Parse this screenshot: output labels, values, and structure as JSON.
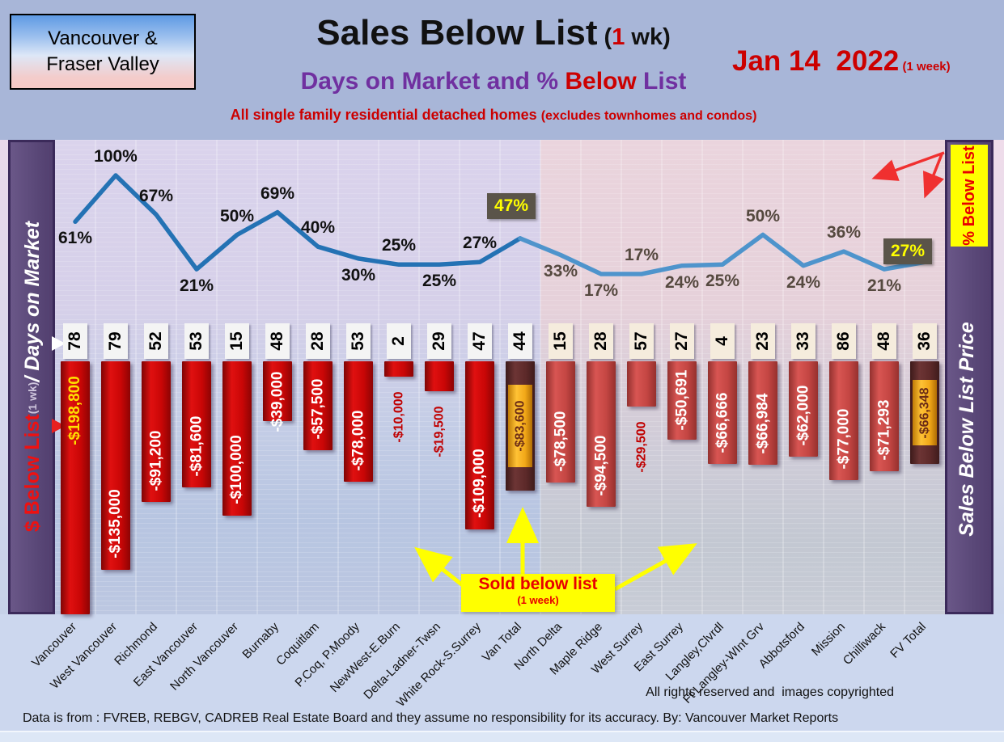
{
  "header": {
    "region_box": {
      "line1": "Vancouver &",
      "line2": "Fraser Valley"
    },
    "title": {
      "main": "Sales Below List",
      "paren_open": " (",
      "paren_num": "1",
      "paren_rest": " wk)"
    },
    "date": {
      "main": "Jan 14  2022",
      "note": " (1 week)"
    },
    "subtitle": {
      "part1": "Days on Market and % ",
      "part2": "Below ",
      "part3": "List"
    },
    "tagline": {
      "part1": "All single family residential detached homes ",
      "part2": "(excludes townhomes and condos)"
    }
  },
  "left_sidebar": {
    "label_red": "$ Below List ",
    "label_small": "(1 wk) ",
    "label_white": "/ Days on Market"
  },
  "right_sidebar": {
    "badge": "% Below List",
    "label": "Sales Below List Price"
  },
  "annotations": {
    "sold_line1": "Sold below list",
    "sold_line2": "(1 week)"
  },
  "footer": {
    "rights": "All rights reserved and  images copyrighted",
    "source": "Data is from : FVREB, REBGV, CADREB Real Estate Board and they assume no responsibility for its accuracy. By: Vancouver Market Reports"
  },
  "colors": {
    "accent_purple": "#7030a0",
    "accent_red": "#cc0000",
    "bar_red_left": "#c00000",
    "bar_red_right": "#c0504d",
    "total_bar_brown": "#5a2a2a",
    "total_gold": "#f2a81a",
    "line_left": "#2472b4",
    "line_right": "#4e94cc",
    "badge_bg": "#5a5449",
    "badge_text": "#ffff00",
    "sidebar_purple": "#5d4a7c",
    "callout_yellow": "#ffff00"
  },
  "chart_data": {
    "type": "bar",
    "title": "Sales Below List (1 wk) — Days on Market and % Below List",
    "categories": [
      "Vancouver",
      "West Vancouver",
      "Richmond",
      "East Vancouver",
      "North Vancouver",
      "Burnaby",
      "Coquitlam",
      "P.Coq, P.Moody",
      "NewWest-E.Burn",
      "Delta-Ladner-Twsn",
      "White Rock-S.Surrey",
      "Van Total",
      "North Delta",
      "Maple Ridge",
      "West Surrey",
      "East Surrey",
      "Langley,Clvrdl",
      "Ft Langley-WInt Grv",
      "Abbotsford",
      "Mission",
      "Chilliwack",
      "FV Total"
    ],
    "regions": {
      "vancouver_columns": 12,
      "fraser_valley_columns": 10
    },
    "totals_indices": [
      11,
      21
    ],
    "series": [
      {
        "name": "% Below List",
        "type": "line",
        "values": [
          61,
          100,
          67,
          21,
          50,
          69,
          40,
          30,
          25,
          25,
          27,
          47,
          33,
          17,
          17,
          24,
          25,
          50,
          24,
          36,
          21,
          27
        ],
        "label_side": [
          "below",
          "above",
          "above",
          "below",
          "above",
          "above",
          "above",
          "below",
          "above",
          "below",
          "above",
          "badge",
          "below",
          "below",
          "above",
          "below",
          "below",
          "above",
          "below",
          "above",
          "below",
          "badge"
        ]
      },
      {
        "name": "$ Below List",
        "type": "bar",
        "values": [
          -198800,
          -135000,
          -91200,
          -81600,
          -100000,
          -39000,
          -57500,
          -78000,
          -10000,
          -19500,
          -109000,
          -83600,
          -78500,
          -94500,
          -29500,
          -50691,
          -66666,
          -66984,
          -62000,
          -77000,
          -71293,
          -66348
        ],
        "labels": [
          "-$198,800",
          "-$135,000",
          "-$91,200",
          "-$81,600",
          "-$100,000",
          "-$39,000",
          "-$57,500",
          "-$78,000",
          "-$10,000",
          "-$19,500",
          "-$109,000",
          "-$83,600",
          "-$78,500",
          "-$94,500",
          "-$29,500",
          "-$50,691",
          "-$66,666",
          "-$66,984",
          "-$62,000",
          "-$77,000",
          "-$71,293",
          "-$66,348"
        ],
        "label_style": [
          "inside-yellow",
          "inside",
          "inside",
          "inside",
          "inside",
          "inside-overflow",
          "inside",
          "inside",
          "outside",
          "outside",
          "inside",
          "total",
          "inside",
          "inside",
          "outside",
          "inside",
          "inside",
          "inside",
          "inside",
          "inside",
          "inside",
          "total"
        ]
      },
      {
        "name": "Days on Market",
        "type": "label-boxes",
        "values": [
          78,
          79,
          52,
          53,
          15,
          48,
          28,
          53,
          2,
          29,
          47,
          44,
          15,
          28,
          57,
          27,
          4,
          23,
          33,
          86,
          48,
          36
        ]
      }
    ]
  }
}
